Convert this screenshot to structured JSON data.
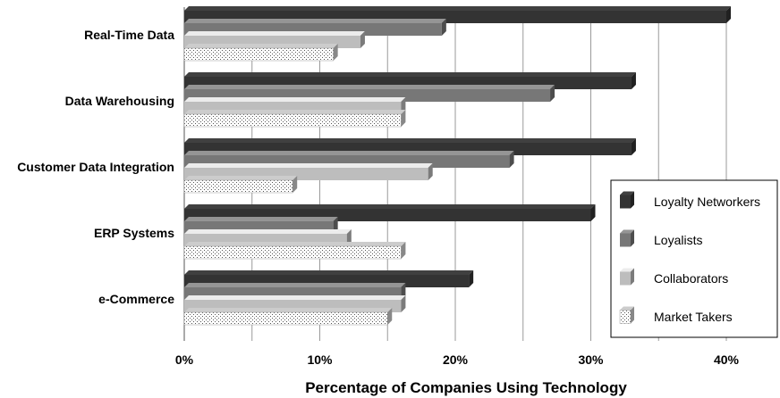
{
  "chart_data": {
    "type": "bar",
    "orientation": "horizontal",
    "categories": [
      "Real-Time Data",
      "Data Warehousing",
      "Customer Data Integration",
      "ERP Systems",
      "e-Commerce"
    ],
    "series": [
      {
        "name": "Loyalty Networkers",
        "values": [
          40,
          33,
          33,
          30,
          21
        ],
        "color": "#333333",
        "pattern": "solid"
      },
      {
        "name": "Loyalists",
        "values": [
          19,
          27,
          24,
          11,
          16
        ],
        "color": "#777777",
        "pattern": "solid"
      },
      {
        "name": "Collaborators",
        "values": [
          13,
          16,
          18,
          12,
          16
        ],
        "color": "#bdbdbd",
        "pattern": "solid"
      },
      {
        "name": "Market Takers",
        "values": [
          11,
          16,
          8,
          16,
          15
        ],
        "color": "#ffffff",
        "pattern": "dotted"
      }
    ],
    "x_ticks": [
      "0%",
      "10%",
      "20%",
      "30%",
      "40%"
    ],
    "xlim": [
      0,
      40
    ],
    "xlabel": "Percentage of Companies Using Technology",
    "ylabel": "",
    "title": "",
    "grid": "vertical",
    "legend_position": "bottom-right"
  }
}
